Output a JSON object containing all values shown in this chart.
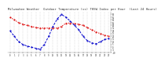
{
  "title": "Milwaukee Weather  Outdoor Temperature (vs) THSW Index per Hour  (Last 24 Hours)",
  "title_fontsize": 2.8,
  "title_color": "#333333",
  "hours": [
    0,
    1,
    2,
    3,
    4,
    5,
    6,
    7,
    8,
    9,
    10,
    11,
    12,
    13,
    14,
    15,
    16,
    17,
    18,
    19,
    20,
    21,
    22,
    23
  ],
  "temp": [
    55,
    50,
    45,
    42,
    40,
    38,
    36,
    35,
    35,
    35,
    35,
    35,
    38,
    44,
    44,
    43,
    42,
    40,
    36,
    32,
    28,
    25,
    22,
    20
  ],
  "thsw": [
    30,
    20,
    10,
    5,
    2,
    0,
    -2,
    -4,
    5,
    20,
    38,
    52,
    60,
    55,
    48,
    40,
    32,
    20,
    12,
    8,
    6,
    10,
    14,
    16
  ],
  "temp_color": "#dd0000",
  "thsw_color": "#0000cc",
  "bg_color": "#ffffff",
  "grid_color": "#999999",
  "ylim_min": -10,
  "ylim_max": 65,
  "ytick_values": [
    60,
    55,
    50,
    45,
    40,
    35,
    30,
    25,
    20,
    15,
    10,
    5,
    0,
    -5,
    -10
  ],
  "ytick_labels": [
    "60",
    "55",
    "50",
    "45",
    "40",
    "35",
    "30",
    "25",
    "20",
    "15",
    "10",
    "5",
    "0",
    "-5",
    "-10"
  ]
}
